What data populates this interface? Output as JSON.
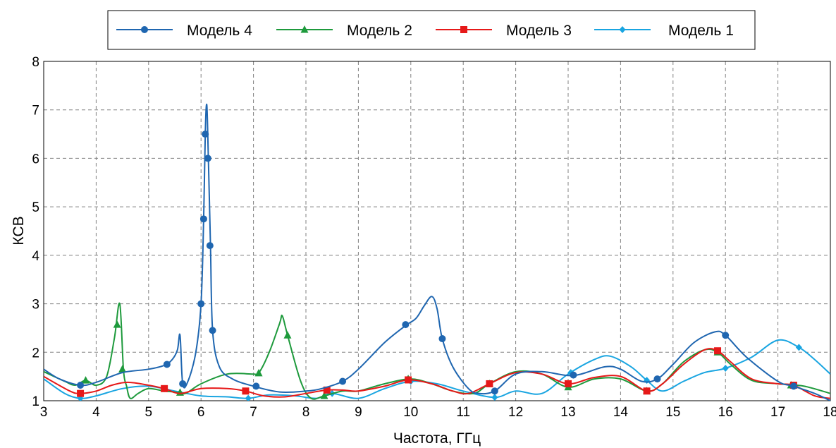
{
  "chart_data": {
    "type": "line",
    "xlabel": "Частота, ГГц",
    "ylabel": "КСВ",
    "xlim": [
      3,
      18
    ],
    "ylim": [
      1,
      8
    ],
    "x_ticks": [
      3,
      4,
      5,
      6,
      7,
      8,
      9,
      10,
      11,
      12,
      13,
      14,
      15,
      16,
      17,
      18
    ],
    "y_ticks": [
      1,
      2,
      3,
      4,
      5,
      6,
      7,
      8
    ],
    "grid": true,
    "legend_position": "top",
    "series": [
      {
        "name": "Модель 4",
        "color": "#1f66b0",
        "marker": "circle",
        "points": [
          [
            3.0,
            1.65
          ],
          [
            3.3,
            1.45
          ],
          [
            3.7,
            1.32
          ],
          [
            4.0,
            1.38
          ],
          [
            4.5,
            1.58
          ],
          [
            5.0,
            1.65
          ],
          [
            5.3,
            1.73
          ],
          [
            5.45,
            1.85
          ],
          [
            5.55,
            2.05
          ],
          [
            5.6,
            2.35
          ],
          [
            5.65,
            1.35
          ],
          [
            5.75,
            1.4
          ],
          [
            5.9,
            2.0
          ],
          [
            6.0,
            3.0
          ],
          [
            6.05,
            4.75
          ],
          [
            6.08,
            6.5
          ],
          [
            6.11,
            7.1
          ],
          [
            6.14,
            6.0
          ],
          [
            6.18,
            4.2
          ],
          [
            6.22,
            2.45
          ],
          [
            6.35,
            1.7
          ],
          [
            6.6,
            1.45
          ],
          [
            7.0,
            1.3
          ],
          [
            7.5,
            1.18
          ],
          [
            8.0,
            1.2
          ],
          [
            8.3,
            1.25
          ],
          [
            8.7,
            1.4
          ],
          [
            9.0,
            1.65
          ],
          [
            9.5,
            2.2
          ],
          [
            9.9,
            2.55
          ],
          [
            10.1,
            2.7
          ],
          [
            10.25,
            2.95
          ],
          [
            10.4,
            3.15
          ],
          [
            10.5,
            2.9
          ],
          [
            10.6,
            2.28
          ],
          [
            10.8,
            1.7
          ],
          [
            11.1,
            1.25
          ],
          [
            11.3,
            1.15
          ],
          [
            11.6,
            1.2
          ],
          [
            12.0,
            1.55
          ],
          [
            12.5,
            1.6
          ],
          [
            13.1,
            1.52
          ],
          [
            13.7,
            1.7
          ],
          [
            14.0,
            1.65
          ],
          [
            14.4,
            1.4
          ],
          [
            14.7,
            1.45
          ],
          [
            15.0,
            1.75
          ],
          [
            15.4,
            2.2
          ],
          [
            15.8,
            2.42
          ],
          [
            16.0,
            2.35
          ],
          [
            16.4,
            1.9
          ],
          [
            17.0,
            1.4
          ],
          [
            17.3,
            1.3
          ],
          [
            17.7,
            1.15
          ],
          [
            18.0,
            1.0
          ]
        ],
        "markers": [
          [
            3.7,
            1.32
          ],
          [
            5.35,
            1.75
          ],
          [
            5.65,
            1.35
          ],
          [
            6.0,
            3.0
          ],
          [
            6.05,
            4.75
          ],
          [
            6.08,
            6.5
          ],
          [
            6.13,
            6.0
          ],
          [
            6.17,
            4.2
          ],
          [
            6.22,
            2.45
          ],
          [
            7.05,
            1.3
          ],
          [
            8.7,
            1.4
          ],
          [
            9.9,
            2.57
          ],
          [
            10.6,
            2.28
          ],
          [
            11.6,
            1.2
          ],
          [
            13.1,
            1.53
          ],
          [
            14.7,
            1.45
          ],
          [
            16.0,
            2.35
          ],
          [
            17.3,
            1.3
          ]
        ]
      },
      {
        "name": "Модель 2",
        "color": "#1e9a3c",
        "marker": "triangle",
        "points": [
          [
            3.0,
            1.6
          ],
          [
            3.4,
            1.4
          ],
          [
            3.6,
            1.32
          ],
          [
            3.8,
            1.42
          ],
          [
            4.0,
            1.32
          ],
          [
            4.2,
            1.5
          ],
          [
            4.35,
            2.3
          ],
          [
            4.45,
            3.0
          ],
          [
            4.52,
            1.65
          ],
          [
            4.58,
            1.3
          ],
          [
            4.65,
            1.05
          ],
          [
            4.8,
            1.15
          ],
          [
            5.0,
            1.25
          ],
          [
            5.3,
            1.2
          ],
          [
            5.5,
            1.18
          ],
          [
            5.7,
            1.15
          ],
          [
            6.0,
            1.35
          ],
          [
            6.5,
            1.55
          ],
          [
            7.0,
            1.55
          ],
          [
            7.1,
            1.57
          ],
          [
            7.3,
            2.0
          ],
          [
            7.5,
            2.6
          ],
          [
            7.55,
            2.75
          ],
          [
            7.65,
            2.35
          ],
          [
            7.9,
            1.4
          ],
          [
            8.1,
            1.05
          ],
          [
            8.35,
            1.1
          ],
          [
            8.7,
            1.2
          ],
          [
            9.0,
            1.2
          ],
          [
            9.5,
            1.35
          ],
          [
            10.0,
            1.45
          ],
          [
            10.4,
            1.35
          ],
          [
            10.8,
            1.2
          ],
          [
            11.2,
            1.15
          ],
          [
            11.5,
            1.35
          ],
          [
            12.0,
            1.6
          ],
          [
            12.5,
            1.55
          ],
          [
            13.0,
            1.28
          ],
          [
            13.5,
            1.45
          ],
          [
            14.0,
            1.45
          ],
          [
            14.5,
            1.2
          ],
          [
            14.8,
            1.35
          ],
          [
            15.2,
            1.8
          ],
          [
            15.6,
            2.05
          ],
          [
            15.85,
            2.0
          ],
          [
            16.1,
            1.75
          ],
          [
            16.5,
            1.42
          ],
          [
            17.0,
            1.35
          ],
          [
            17.5,
            1.3
          ],
          [
            18.0,
            1.15
          ]
        ],
        "markers": [
          [
            3.8,
            1.42
          ],
          [
            4.4,
            2.57
          ],
          [
            4.5,
            1.65
          ],
          [
            5.6,
            1.17
          ],
          [
            7.1,
            1.57
          ],
          [
            7.65,
            2.35
          ],
          [
            8.35,
            1.1
          ],
          [
            9.95,
            1.45
          ],
          [
            11.5,
            1.35
          ],
          [
            13.0,
            1.28
          ],
          [
            14.5,
            1.2
          ],
          [
            15.85,
            2.0
          ],
          [
            17.25,
            1.32
          ]
        ]
      },
      {
        "name": "Модель 3",
        "color": "#e61919",
        "marker": "square",
        "points": [
          [
            3.0,
            1.5
          ],
          [
            3.5,
            1.2
          ],
          [
            3.7,
            1.15
          ],
          [
            4.0,
            1.2
          ],
          [
            4.3,
            1.32
          ],
          [
            4.6,
            1.38
          ],
          [
            5.0,
            1.32
          ],
          [
            5.3,
            1.25
          ],
          [
            5.6,
            1.15
          ],
          [
            6.0,
            1.25
          ],
          [
            6.5,
            1.25
          ],
          [
            6.85,
            1.2
          ],
          [
            7.2,
            1.1
          ],
          [
            7.6,
            1.08
          ],
          [
            8.0,
            1.15
          ],
          [
            8.4,
            1.22
          ],
          [
            8.7,
            1.22
          ],
          [
            9.0,
            1.2
          ],
          [
            9.5,
            1.3
          ],
          [
            9.95,
            1.43
          ],
          [
            10.4,
            1.35
          ],
          [
            10.8,
            1.2
          ],
          [
            11.1,
            1.15
          ],
          [
            11.5,
            1.35
          ],
          [
            12.0,
            1.58
          ],
          [
            12.5,
            1.55
          ],
          [
            13.0,
            1.35
          ],
          [
            13.5,
            1.48
          ],
          [
            14.0,
            1.5
          ],
          [
            14.5,
            1.2
          ],
          [
            14.8,
            1.35
          ],
          [
            15.2,
            1.75
          ],
          [
            15.6,
            2.05
          ],
          [
            15.85,
            2.03
          ],
          [
            16.1,
            1.8
          ],
          [
            16.5,
            1.45
          ],
          [
            17.0,
            1.35
          ],
          [
            17.3,
            1.32
          ],
          [
            17.7,
            1.1
          ],
          [
            18.0,
            1.05
          ]
        ],
        "markers": [
          [
            3.7,
            1.15
          ],
          [
            5.3,
            1.25
          ],
          [
            6.85,
            1.2
          ],
          [
            8.4,
            1.22
          ],
          [
            9.95,
            1.43
          ],
          [
            11.5,
            1.35
          ],
          [
            13.0,
            1.35
          ],
          [
            14.5,
            1.2
          ],
          [
            15.85,
            2.03
          ],
          [
            17.3,
            1.32
          ]
        ]
      },
      {
        "name": "Модель 1",
        "color": "#19a5e1",
        "marker": "diamond",
        "points": [
          [
            3.0,
            1.45
          ],
          [
            3.4,
            1.15
          ],
          [
            3.7,
            1.05
          ],
          [
            4.0,
            1.1
          ],
          [
            4.5,
            1.25
          ],
          [
            5.0,
            1.3
          ],
          [
            5.5,
            1.2
          ],
          [
            6.0,
            1.1
          ],
          [
            6.5,
            1.08
          ],
          [
            6.9,
            1.05
          ],
          [
            7.3,
            1.12
          ],
          [
            7.8,
            1.1
          ],
          [
            8.2,
            1.05
          ],
          [
            8.5,
            1.15
          ],
          [
            9.0,
            1.05
          ],
          [
            9.5,
            1.25
          ],
          [
            10.0,
            1.4
          ],
          [
            10.5,
            1.35
          ],
          [
            11.0,
            1.2
          ],
          [
            11.6,
            1.07
          ],
          [
            12.0,
            1.2
          ],
          [
            12.5,
            1.15
          ],
          [
            13.0,
            1.55
          ],
          [
            13.5,
            1.85
          ],
          [
            13.8,
            1.92
          ],
          [
            14.2,
            1.7
          ],
          [
            14.5,
            1.42
          ],
          [
            14.8,
            1.2
          ],
          [
            15.2,
            1.4
          ],
          [
            15.6,
            1.58
          ],
          [
            16.0,
            1.67
          ],
          [
            16.5,
            1.9
          ],
          [
            17.0,
            2.25
          ],
          [
            17.4,
            2.1
          ],
          [
            17.7,
            1.85
          ],
          [
            18.0,
            1.55
          ]
        ],
        "markers": [
          [
            3.7,
            1.05
          ],
          [
            5.3,
            1.25
          ],
          [
            6.9,
            1.05
          ],
          [
            8.5,
            1.15
          ],
          [
            10.0,
            1.4
          ],
          [
            11.6,
            1.07
          ],
          [
            13.05,
            1.58
          ],
          [
            14.5,
            1.42
          ],
          [
            16.0,
            1.67
          ],
          [
            17.4,
            2.1
          ]
        ]
      }
    ]
  }
}
